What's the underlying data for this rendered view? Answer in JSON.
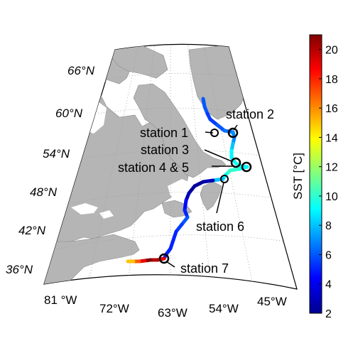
{
  "map": {
    "lat_labels": [
      "66°N",
      "60°N",
      "54°N",
      "48°N",
      "42°N",
      "36°N"
    ],
    "lon_labels": [
      "81 °W",
      "72°W",
      "63°W",
      "54°W",
      "45°W"
    ],
    "stations": [
      {
        "label": "station 1"
      },
      {
        "label": "station 2"
      },
      {
        "label": "station 3"
      },
      {
        "label": "station 4 & 5"
      },
      {
        "label": "station 6"
      },
      {
        "label": "station 7"
      }
    ]
  },
  "colorbar": {
    "label": "SST [°C]",
    "min": 2,
    "max": 21,
    "ticks": [
      "2",
      "4",
      "6",
      "8",
      "10",
      "12",
      "14",
      "16",
      "18",
      "20"
    ],
    "colormap": "jet"
  },
  "track_sst": [
    6,
    6,
    5.5,
    5.5,
    6,
    6.5,
    7,
    7,
    8,
    9,
    9,
    9.5,
    9,
    9,
    10,
    10,
    9,
    8,
    3,
    2.5,
    2.5,
    3,
    4.5,
    5,
    6,
    5.5,
    5,
    5,
    5,
    5,
    19,
    20,
    21,
    19,
    17,
    15,
    13
  ]
}
